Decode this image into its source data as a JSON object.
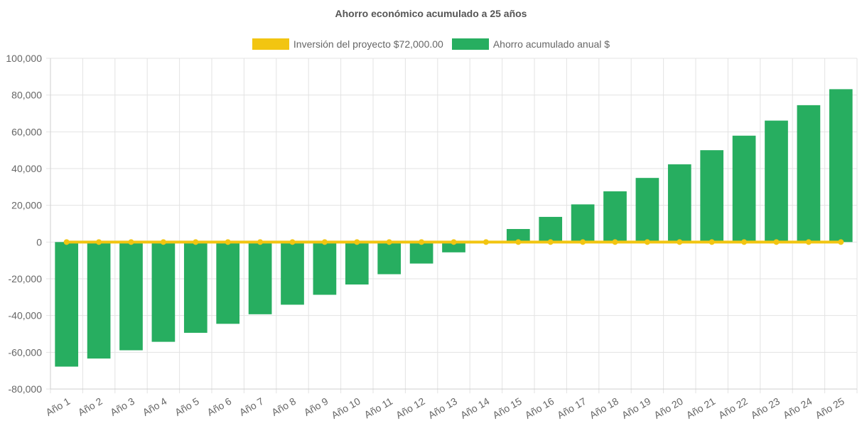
{
  "chart_data": {
    "type": "bar",
    "title": "Ahorro económico acumulado a 25 años",
    "xlabel": "",
    "ylabel": "",
    "categories": [
      "Año 1",
      "Año 2",
      "Año 3",
      "Año 4",
      "Año 5",
      "Año 6",
      "Año 7",
      "Año 8",
      "Año 9",
      "Año 10",
      "Año 11",
      "Año 12",
      "Año 13",
      "Año 14",
      "Año 15",
      "Año 16",
      "Año 17",
      "Año 18",
      "Año 19",
      "Año 20",
      "Año 21",
      "Año 22",
      "Año 23",
      "Año 24",
      "Año 25"
    ],
    "ylim": [
      -80000,
      100000
    ],
    "yticks": [
      100000,
      80000,
      60000,
      40000,
      20000,
      0,
      -20000,
      -40000,
      -60000,
      -80000
    ],
    "ytick_labels": [
      "100,000",
      "80,000",
      "60,000",
      "40,000",
      "20,000",
      "0",
      "-20,000",
      "-40,000",
      "-60,000",
      "-80,000"
    ],
    "grid": true,
    "legend_position": "top",
    "series": [
      {
        "name": "Inversión del proyecto $72,000.00",
        "type": "line",
        "color": "#f2c511",
        "values": [
          0,
          0,
          0,
          0,
          0,
          0,
          0,
          0,
          0,
          0,
          0,
          0,
          0,
          0,
          0,
          0,
          0,
          0,
          0,
          0,
          0,
          0,
          0,
          0,
          0
        ]
      },
      {
        "name": "Ahorro acumulado anual $",
        "type": "bar",
        "color": "#27ae60",
        "values": [
          -67800,
          -63400,
          -58900,
          -54300,
          -49400,
          -44500,
          -39300,
          -34100,
          -28700,
          -23100,
          -17500,
          -11700,
          -5600,
          0,
          7100,
          13700,
          20500,
          27600,
          34900,
          42300,
          50000,
          57900,
          66100,
          74500,
          83200
        ]
      }
    ]
  }
}
